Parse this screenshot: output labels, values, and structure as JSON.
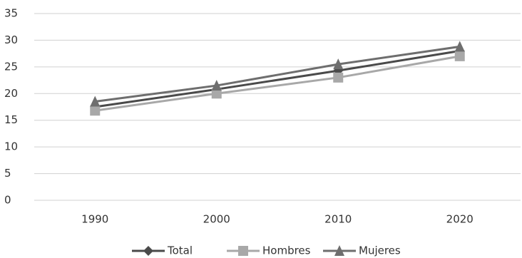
{
  "chart_data": {
    "type": "line",
    "categories": [
      "1990",
      "2000",
      "2010",
      "2020"
    ],
    "series": [
      {
        "name": "Total",
        "color": "#4a4a4a",
        "marker": "diamond",
        "values": [
          17.5,
          20.8,
          24.3,
          28
        ]
      },
      {
        "name": "Hombres",
        "color": "#a8a8a8",
        "marker": "square",
        "values": [
          16.8,
          20,
          23,
          27
        ]
      },
      {
        "name": "Mujeres",
        "color": "#6e6e6e",
        "marker": "triangle",
        "values": [
          18.5,
          21.5,
          25.5,
          28.8
        ]
      }
    ],
    "ylim": [
      0,
      35
    ],
    "yticks": [
      0,
      5,
      10,
      15,
      20,
      25,
      30,
      35
    ],
    "grid": true,
    "legend": "bottom"
  }
}
